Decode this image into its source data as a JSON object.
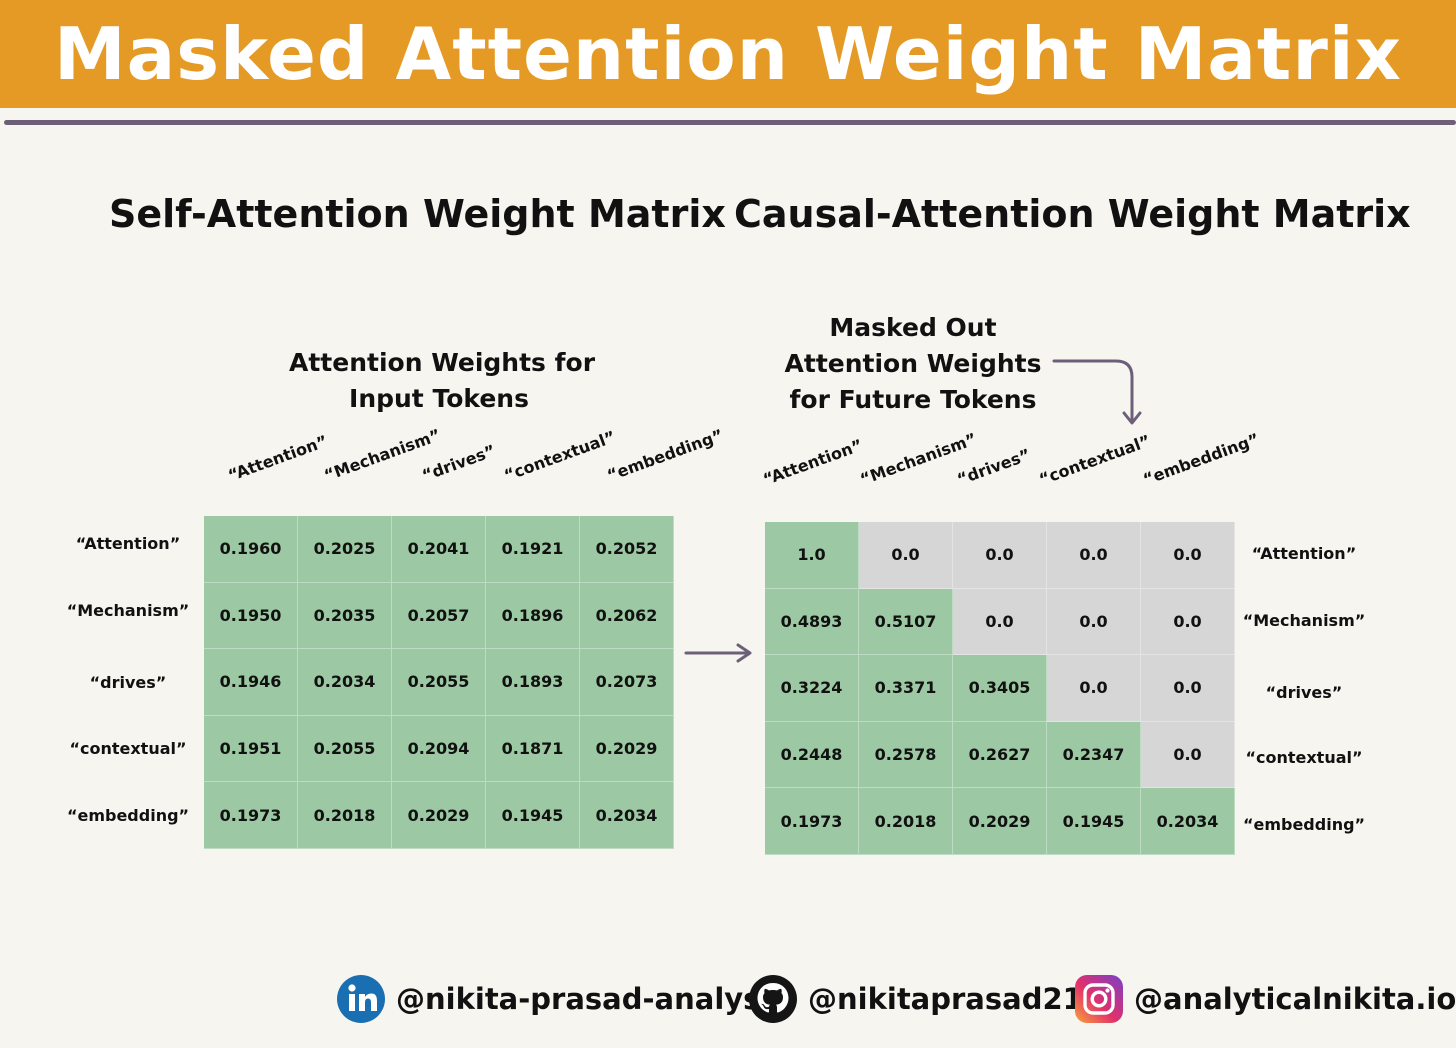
{
  "header": {
    "title": "Masked Attention Weight Matrix"
  },
  "left": {
    "title": "Self-Attention Weight Matrix",
    "caption_lines": [
      "Attention Weights for",
      "Input Tokens"
    ],
    "tokens": [
      "“Attention”",
      "“Mechanism”",
      "“drives”",
      "“contextual”",
      "“embedding”"
    ],
    "rows": [
      [
        "0.1960",
        "0.2025",
        "0.2041",
        "0.1921",
        "0.2052"
      ],
      [
        "0.1950",
        "0.2035",
        "0.2057",
        "0.1896",
        "0.2062"
      ],
      [
        "0.1946",
        "0.2034",
        "0.2055",
        "0.1893",
        "0.2073"
      ],
      [
        "0.1951",
        "0.2055",
        "0.2094",
        "0.1871",
        "0.2029"
      ],
      [
        "0.1973",
        "0.2018",
        "0.2029",
        "0.1945",
        "0.2034"
      ]
    ]
  },
  "right": {
    "title": "Causal-Attention Weight Matrix",
    "caption_lines": [
      "Masked Out",
      "Attention Weights",
      "for Future Tokens"
    ],
    "tokens": [
      "“Attention”",
      "“Mechanism”",
      "“drives”",
      "“contextual”",
      "“embedding”"
    ],
    "rows": [
      [
        "1.0",
        "0.0",
        "0.0",
        "0.0",
        "0.0"
      ],
      [
        "0.4893",
        "0.5107",
        "0.0",
        "0.0",
        "0.0"
      ],
      [
        "0.3224",
        "0.3371",
        "0.3405",
        "0.0",
        "0.0"
      ],
      [
        "0.2448",
        "0.2578",
        "0.2627",
        "0.2347",
        "0.0"
      ],
      [
        "0.1973",
        "0.2018",
        "0.2029",
        "0.1945",
        "0.2034"
      ]
    ]
  },
  "colors": {
    "banner": "#e59a26",
    "unmasked_cell": "#9cc9a3",
    "masked_cell": "#d6d6d6",
    "divider": "#6e5f78"
  },
  "footer": {
    "socials": [
      {
        "icon": "linkedin-icon",
        "handle": "@nikita-prasad-analyst"
      },
      {
        "icon": "github-icon",
        "handle": "@nikitaprasad21"
      },
      {
        "icon": "instagram-icon",
        "handle": "@analyticalnikita.io"
      }
    ]
  }
}
